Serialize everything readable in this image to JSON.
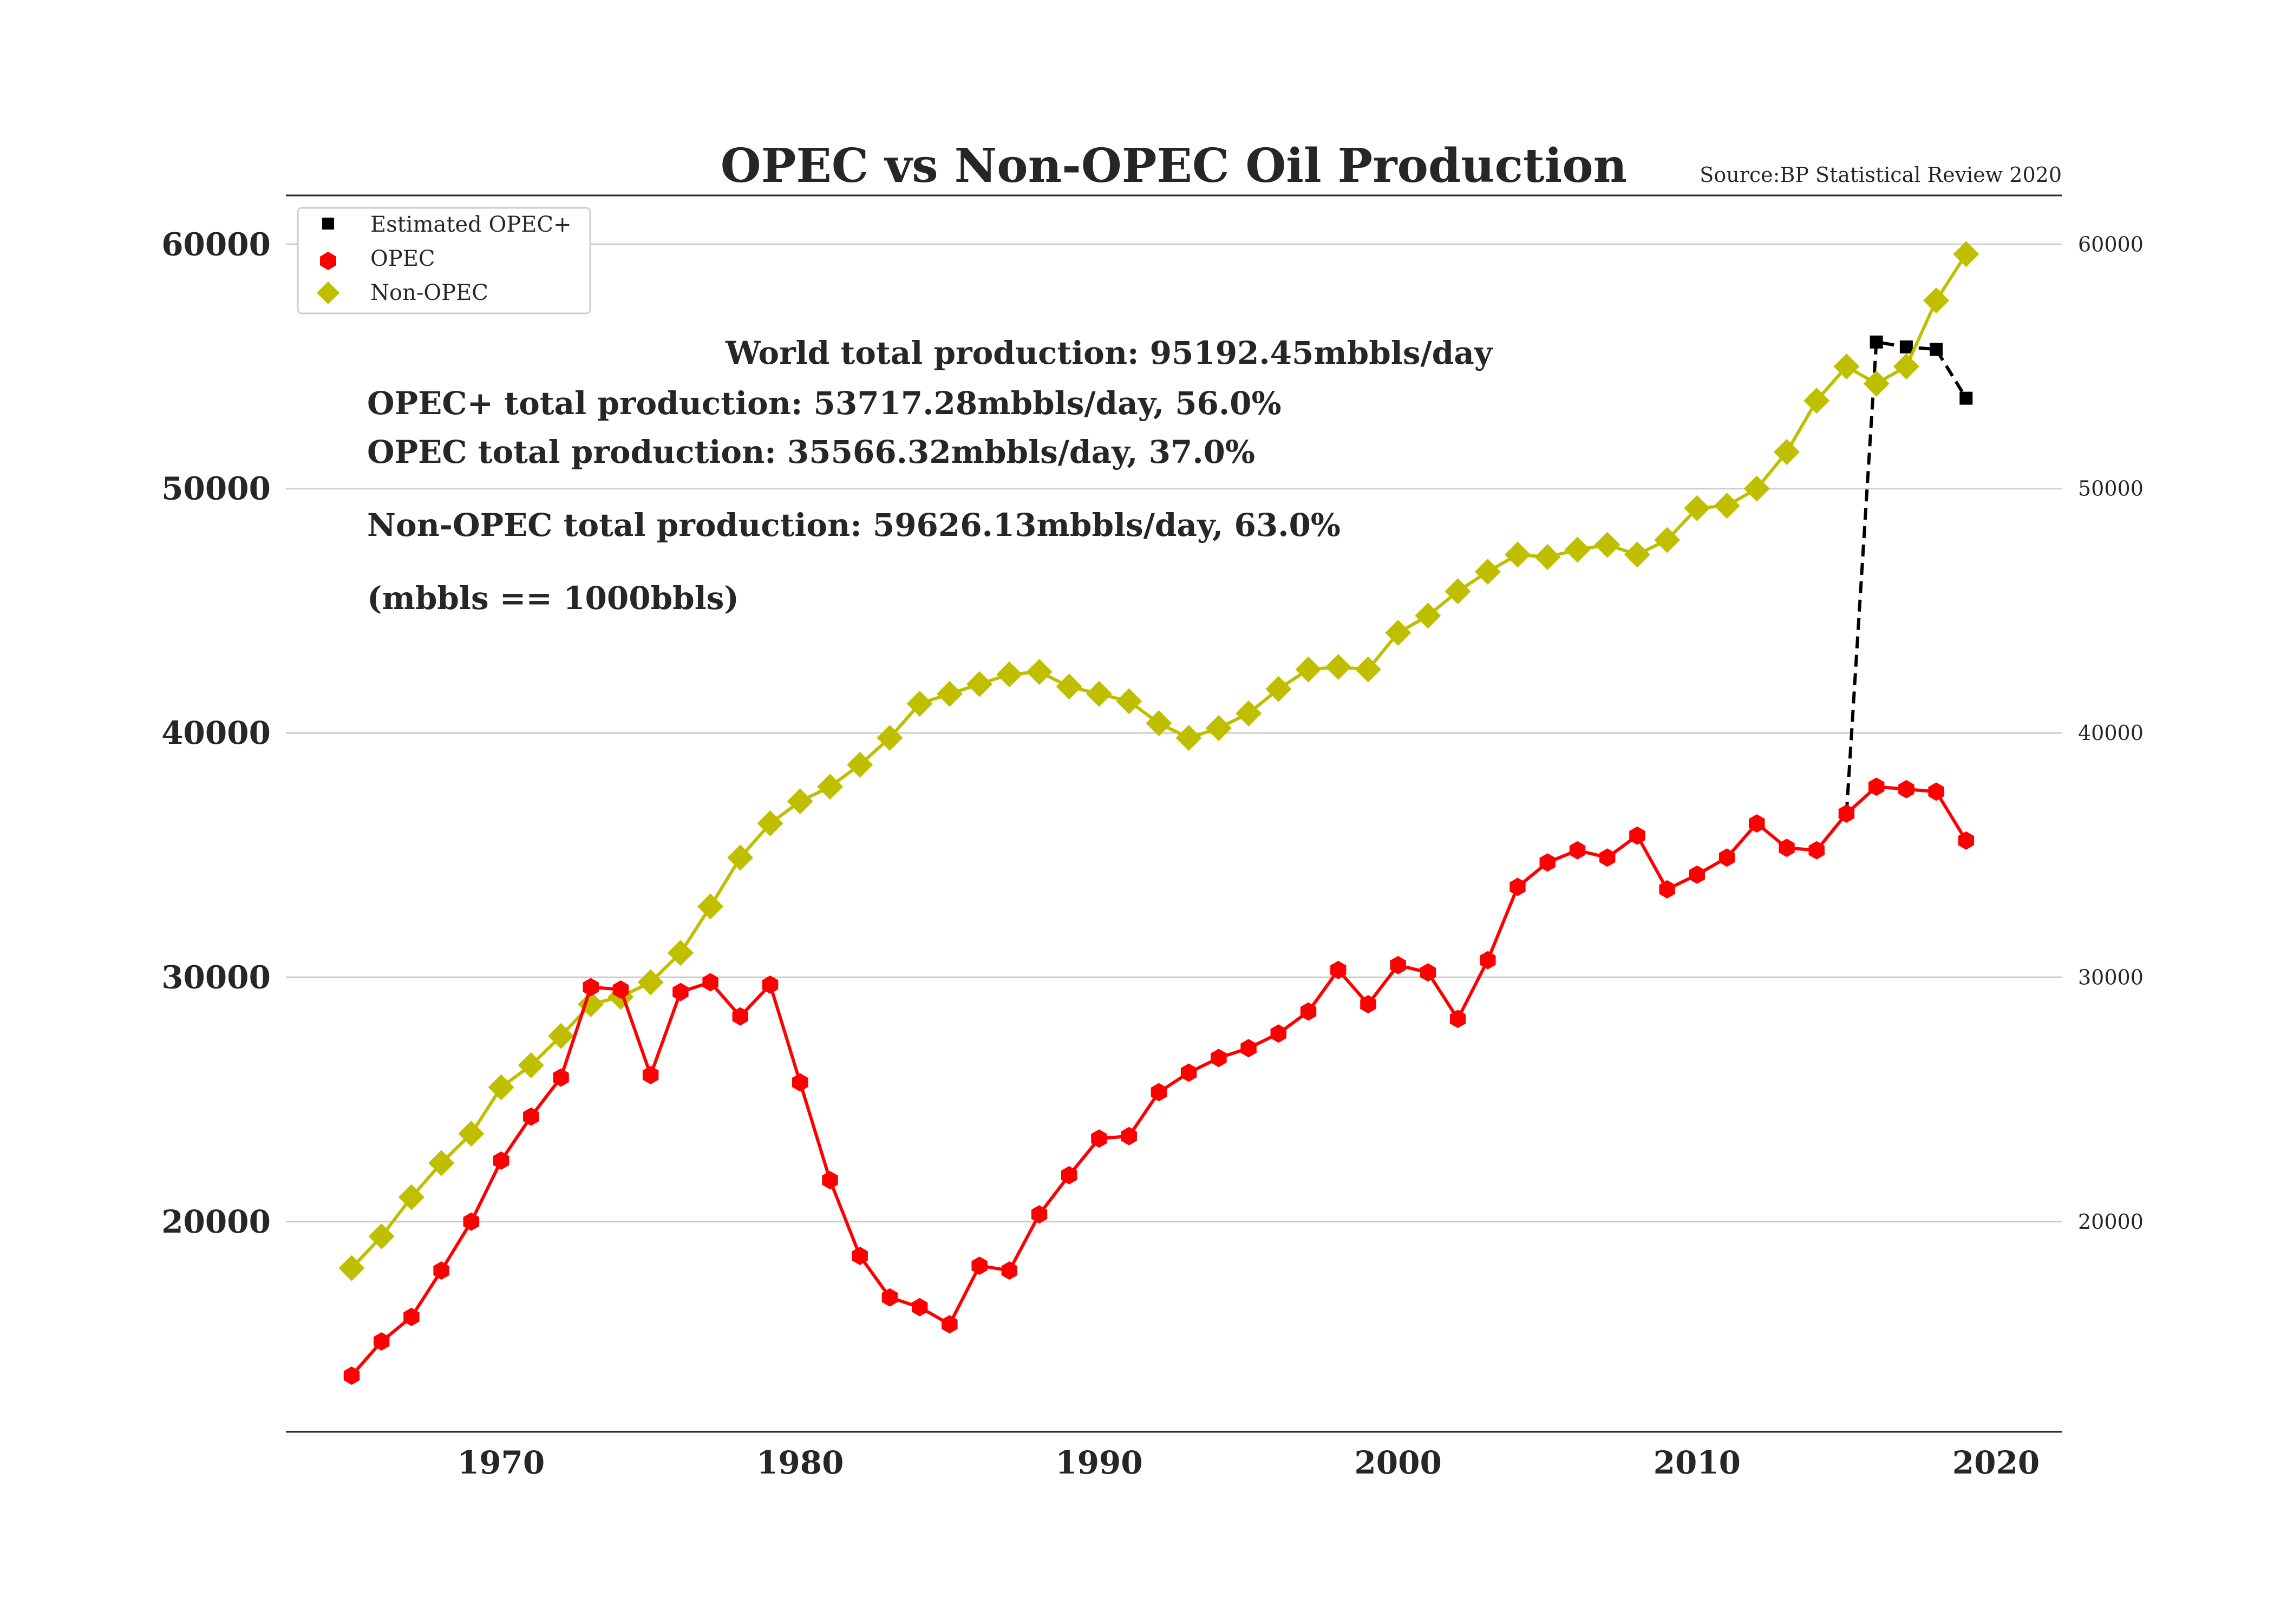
{
  "chart_data": {
    "type": "line",
    "title": "OPEC vs Non-OPEC Oil Production",
    "source": "Source:BP Statistical Review 2020",
    "xlim": [
      1962.8,
      2022.2
    ],
    "ylim": [
      11400,
      62000
    ],
    "x_ticks": [
      "1970",
      "1980",
      "1990",
      "2000",
      "2010",
      "2020"
    ],
    "y_ticks_left": [
      "20000",
      "30000",
      "40000",
      "50000",
      "60000"
    ],
    "y_ticks_right": [
      "20000",
      "30000",
      "40000",
      "50000",
      "60000"
    ],
    "grid": "horizontal",
    "legend_position": "top-left",
    "legend": [
      {
        "label": "Estimated OPEC+",
        "marker": "square",
        "color": "#000000"
      },
      {
        "label": "OPEC",
        "marker": "hexagon",
        "color": "#ff0000"
      },
      {
        "label": "Non-OPEC",
        "marker": "diamond",
        "color": "#bfbf00"
      }
    ],
    "annotations": [
      "World total production: 95192.45mbbls/day",
      "OPEC+ total production: 53717.28mbbls/day, 56.0%",
      "OPEC total production: 35566.32mbbls/day, 37.0%",
      "Non-OPEC total production: 59626.13mbbls/day, 63.0%",
      "(mbbls == 1000bbls)"
    ],
    "series": [
      {
        "name": "Non-OPEC",
        "color": "#bfbf00",
        "marker": "diamond",
        "style": "solid",
        "x": [
          1965,
          1966,
          1967,
          1968,
          1969,
          1970,
          1971,
          1972,
          1973,
          1974,
          1975,
          1976,
          1977,
          1978,
          1979,
          1980,
          1981,
          1982,
          1983,
          1984,
          1985,
          1986,
          1987,
          1988,
          1989,
          1990,
          1991,
          1992,
          1993,
          1994,
          1995,
          1996,
          1997,
          1998,
          1999,
          2000,
          2001,
          2002,
          2003,
          2004,
          2005,
          2006,
          2007,
          2008,
          2009,
          2010,
          2011,
          2012,
          2013,
          2014,
          2015,
          2016,
          2017,
          2018,
          2019
        ],
        "y": [
          18100,
          19400,
          21000,
          22400,
          23600,
          25500,
          26400,
          27600,
          28900,
          29200,
          29800,
          31000,
          32900,
          34900,
          36300,
          37200,
          37800,
          38700,
          39800,
          41200,
          41600,
          42000,
          42400,
          42500,
          41900,
          41600,
          41300,
          40400,
          39800,
          40200,
          40800,
          41800,
          42600,
          42700,
          42600,
          44100,
          44800,
          45800,
          46600,
          47300,
          47200,
          47500,
          47700,
          47300,
          47900,
          49200,
          49300,
          50000,
          51500,
          53600,
          55000,
          54300,
          55000,
          57700,
          59600
        ]
      },
      {
        "name": "OPEC",
        "color": "#ff0000",
        "marker": "hexagon",
        "style": "solid",
        "x": [
          1965,
          1966,
          1967,
          1968,
          1969,
          1970,
          1971,
          1972,
          1973,
          1974,
          1975,
          1976,
          1977,
          1978,
          1979,
          1980,
          1981,
          1982,
          1983,
          1984,
          1985,
          1986,
          1987,
          1988,
          1989,
          1990,
          1991,
          1992,
          1993,
          1994,
          1995,
          1996,
          1997,
          1998,
          1999,
          2000,
          2001,
          2002,
          2003,
          2004,
          2005,
          2006,
          2007,
          2008,
          2009,
          2010,
          2011,
          2012,
          2013,
          2014,
          2015,
          2016,
          2017,
          2018,
          2019
        ],
        "y": [
          13700,
          15100,
          16100,
          18000,
          20000,
          22500,
          24300,
          25900,
          29600,
          29500,
          26000,
          29400,
          29800,
          28400,
          29700,
          25700,
          21700,
          18600,
          16900,
          16500,
          15800,
          18200,
          18000,
          20300,
          21900,
          23400,
          23500,
          25300,
          26100,
          26700,
          27100,
          27700,
          28600,
          30300,
          28900,
          30500,
          30200,
          28300,
          30700,
          33700,
          34700,
          35200,
          34900,
          35800,
          33600,
          34200,
          34900,
          36300,
          35300,
          35200,
          36700,
          37800,
          37700,
          37600,
          35600
        ]
      },
      {
        "name": "Estimated OPEC+",
        "color": "#000000",
        "marker": "square",
        "style": "dashed",
        "x": [
          2015,
          2016,
          2017,
          2018,
          2019
        ],
        "y": [
          36700,
          56000,
          55800,
          55700,
          53700
        ]
      }
    ]
  }
}
